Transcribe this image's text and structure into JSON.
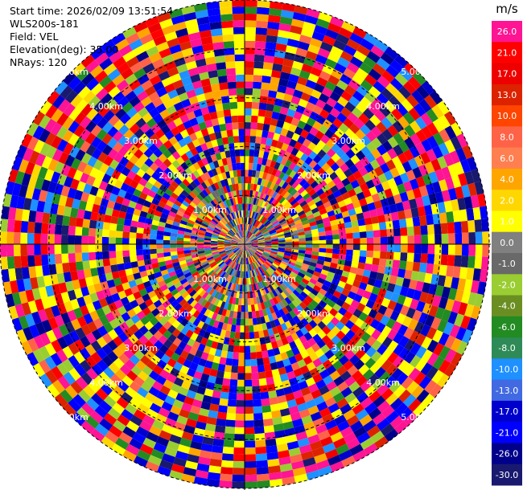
{
  "header": {
    "start_time": "Start time: 2026/02/09 13:51:54",
    "instrument": "WLS200s-181",
    "field": "Field: VEL",
    "elevation": "Elevation(deg): 35.00",
    "nrays": "NRays: 120"
  },
  "colorbar": {
    "unit": "m/s",
    "levels": [
      26.0,
      21.0,
      17.0,
      13.0,
      10.0,
      8.0,
      6.0,
      4.0,
      2.0,
      1.0,
      0.0,
      -1.0,
      -2.0,
      -4.0,
      -6.0,
      -8.0,
      -10.0,
      -13.0,
      -17.0,
      -21.0,
      -26.0,
      -30.0
    ],
    "tick_labels": [
      "26.0",
      "21.0",
      "17.0",
      "13.0",
      "10.0",
      "8.0",
      "6.0",
      "4.0",
      "2.0",
      "1.0",
      "0.0",
      "-1.0",
      "-2.0",
      "-4.0",
      "-6.0",
      "-8.0",
      "-10.0",
      "-13.0",
      "-17.0",
      "-21.0",
      "-26.0",
      "-30.0"
    ],
    "colors": [
      "#ff1493",
      "#ff0000",
      "#ee0000",
      "#dd2200",
      "#ff4500",
      "#ff6347",
      "#ff7f50",
      "#ffa500",
      "#ffd700",
      "#ffff00",
      "#808080",
      "#696969",
      "#9acd32",
      "#6b8e23",
      "#228b22",
      "#2e8b57",
      "#1e90ff",
      "#4169e1",
      "#0000cd",
      "#0000ff",
      "#00008b",
      "#191970"
    ]
  },
  "chart_data": {
    "type": "ppi",
    "field": "VEL",
    "nrays": 120,
    "range_rings_km": [
      1.0,
      2.0,
      3.0,
      4.0,
      5.0
    ],
    "ring_labels": [
      "1.00km",
      "2.00km",
      "3.00km",
      "4.00km",
      "5.00km"
    ],
    "max_range_km": 5.0,
    "vmin": -30.0,
    "vmax": 30.0,
    "note_pattern": "noisy velocities; far range dominated by high magnitudes"
  }
}
